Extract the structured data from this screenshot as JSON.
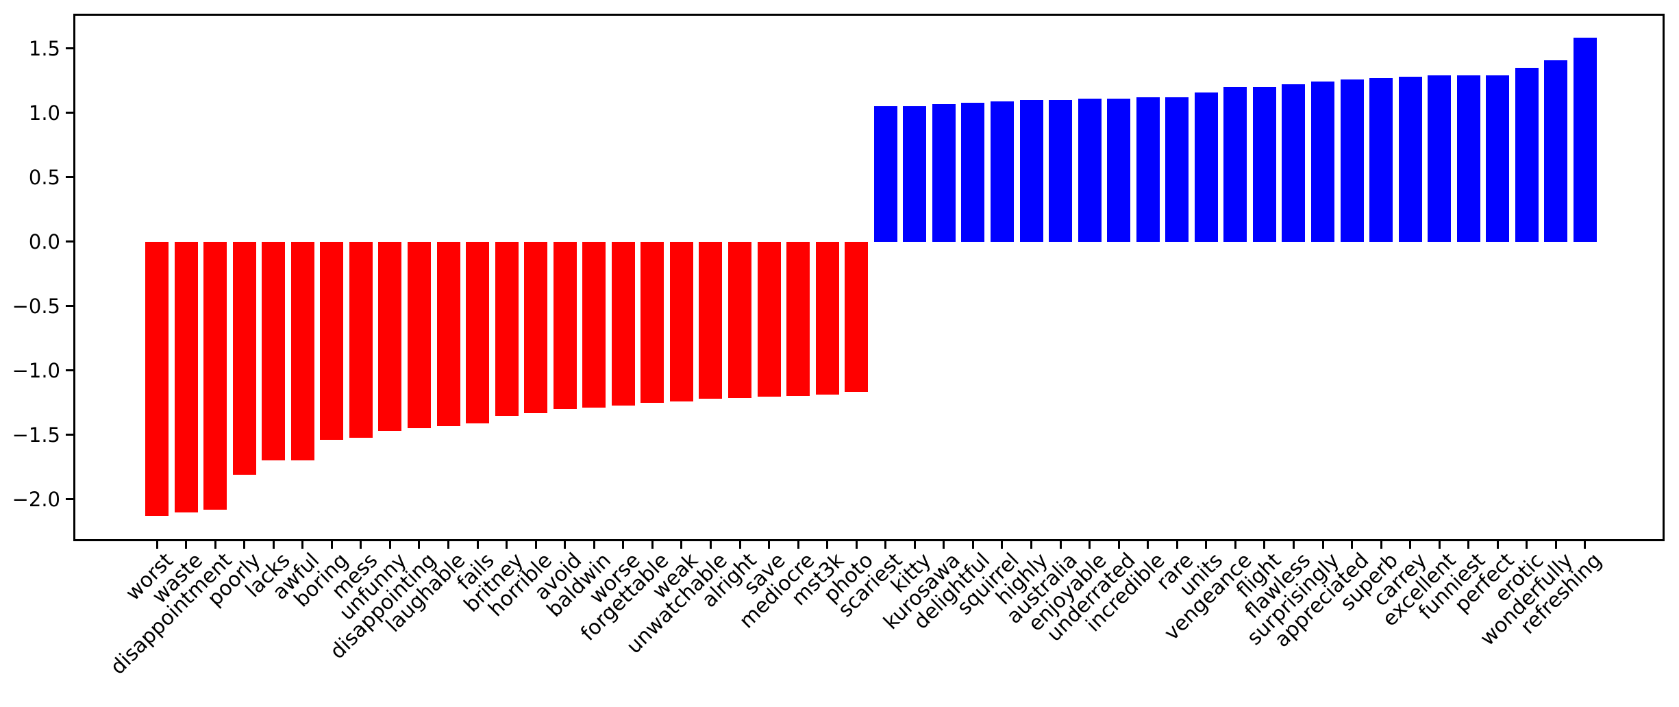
{
  "chart_data": {
    "type": "bar",
    "title": "",
    "xlabel": "",
    "ylabel": "",
    "categories": [
      "worst",
      "waste",
      "disappointment",
      "poorly",
      "lacks",
      "awful",
      "boring",
      "mess",
      "unfunny",
      "disappointing",
      "laughable",
      "fails",
      "britney",
      "horrible",
      "avoid",
      "baldwin",
      "worse",
      "forgettable",
      "weak",
      "unwatchable",
      "alright",
      "save",
      "mediocre",
      "mst3k",
      "photo",
      "scariest",
      "kitty",
      "kurosawa",
      "delightful",
      "squirrel",
      "highly",
      "australia",
      "enjoyable",
      "underrated",
      "incredible",
      "rare",
      "units",
      "vengeance",
      "flight",
      "flawless",
      "surprisingly",
      "appreciated",
      "superb",
      "carrey",
      "excellent",
      "funniest",
      "perfect",
      "erotic",
      "wonderfully",
      "refreshing"
    ],
    "values": [
      -2.13,
      -2.1,
      -2.08,
      -1.81,
      -1.7,
      -1.7,
      -1.54,
      -1.52,
      -1.47,
      -1.45,
      -1.43,
      -1.41,
      -1.35,
      -1.33,
      -1.3,
      -1.29,
      -1.27,
      -1.25,
      -1.24,
      -1.22,
      -1.215,
      -1.205,
      -1.2,
      -1.185,
      -1.165,
      1.05,
      1.05,
      1.07,
      1.08,
      1.09,
      1.1,
      1.1,
      1.11,
      1.11,
      1.12,
      1.12,
      1.16,
      1.2,
      1.2,
      1.22,
      1.245,
      1.26,
      1.27,
      1.28,
      1.29,
      1.29,
      1.29,
      1.35,
      1.41,
      1.585
    ],
    "colors": {
      "negative_bar": "#ff0000",
      "positive_bar": "#0000ff",
      "axis": "#000000",
      "background": "#ffffff"
    },
    "ylim": [
      -2.325,
      1.77
    ],
    "yticks": [
      -2.0,
      -1.5,
      -1.0,
      -0.5,
      0.0,
      0.5,
      1.0,
      1.5
    ],
    "ytick_labels": [
      "−2.0",
      "−1.5",
      "−1.0",
      "−0.5",
      "0.0",
      "0.5",
      "1.0",
      "1.5"
    ],
    "grid": false,
    "legend": null,
    "x_tick_rotation_deg": 45,
    "bar_width_fraction": 0.8
  }
}
